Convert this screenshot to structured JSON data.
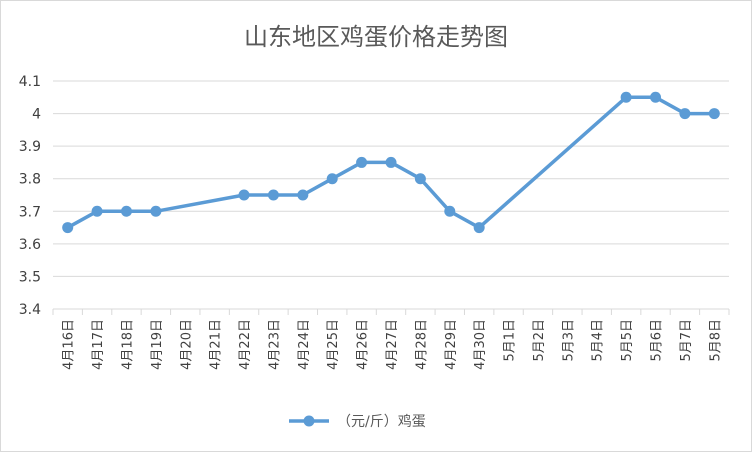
{
  "chart_data": {
    "type": "line",
    "title": "山东地区鸡蛋价格走势图",
    "xlabel": "",
    "ylabel": "",
    "ylim": [
      3.4,
      4.1
    ],
    "yticks": [
      "3.4",
      "3.5",
      "3.6",
      "3.7",
      "3.8",
      "3.9",
      "4",
      "4.1"
    ],
    "grid": true,
    "legend_position": "bottom",
    "categories": [
      "4月16日",
      "4月17日",
      "4月18日",
      "4月19日",
      "4月20日",
      "4月21日",
      "4月22日",
      "4月23日",
      "4月24日",
      "4月25日",
      "4月26日",
      "4月27日",
      "4月28日",
      "4月29日",
      "4月30日",
      "5月1日",
      "5月2日",
      "5月3日",
      "5月4日",
      "5月5日",
      "5月6日",
      "5月7日",
      "5月8日"
    ],
    "series": [
      {
        "name": "（元/斤）鸡蛋",
        "color": "#5b9bd5",
        "values": [
          3.65,
          3.7,
          3.7,
          3.7,
          null,
          null,
          3.75,
          3.75,
          3.75,
          3.8,
          3.85,
          3.85,
          3.8,
          3.7,
          3.65,
          null,
          null,
          null,
          null,
          4.05,
          4.05,
          4.0,
          4.0
        ]
      }
    ]
  }
}
